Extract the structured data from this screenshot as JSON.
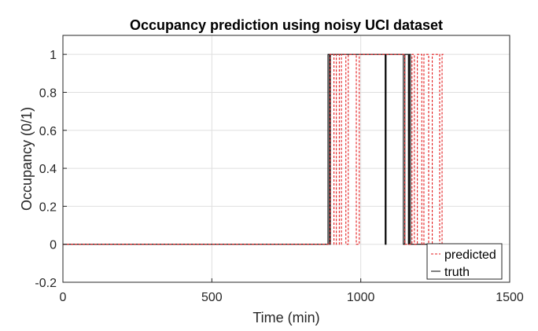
{
  "chart_data": {
    "type": "line",
    "title": "Occupancy prediction using noisy UCI dataset",
    "xlabel": "Time (min)",
    "ylabel": "Occupancy (0/1)",
    "xlim": [
      0,
      1500
    ],
    "ylim": [
      -0.2,
      1.1
    ],
    "xticks": [
      0,
      500,
      1000,
      1500
    ],
    "yticks": [
      -0.2,
      0,
      0.2,
      0.4,
      0.6,
      0.8,
      1
    ],
    "grid": true,
    "legend_position": "bottom-right",
    "series": [
      {
        "name": "truth",
        "color": "#000000",
        "style": "solid",
        "x": [
          0,
          890,
          890,
          895,
          895,
          898,
          898,
          1082,
          1082,
          1085,
          1085,
          1143,
          1143,
          1148,
          1148,
          1160,
          1160,
          1163,
          1163,
          1167,
          1167,
          1440
        ],
        "y": [
          0,
          0,
          1,
          1,
          0,
          0,
          1,
          1,
          0,
          0,
          1,
          1,
          0,
          0,
          1,
          1,
          0,
          0,
          1,
          1,
          0,
          0
        ]
      },
      {
        "name": "predicted",
        "color": "#e31a1c",
        "style": "dashed",
        "x": [
          0,
          897,
          897,
          910,
          910,
          918,
          918,
          928,
          928,
          935,
          935,
          950,
          950,
          958,
          958,
          985,
          985,
          995,
          995,
          1148,
          1148,
          1172,
          1172,
          1180,
          1180,
          1190,
          1190,
          1205,
          1205,
          1212,
          1212,
          1228,
          1228,
          1240,
          1240,
          1265,
          1265,
          1273,
          1273,
          1280
        ],
        "y": [
          0,
          0,
          1,
          1,
          0,
          0,
          1,
          1,
          0,
          0,
          1,
          1,
          0,
          0,
          1,
          1,
          0,
          0,
          1,
          1,
          0,
          0,
          1,
          1,
          0,
          0,
          1,
          1,
          0,
          0,
          1,
          1,
          0,
          0,
          1,
          1,
          0,
          0,
          1,
          1
        ]
      }
    ]
  }
}
